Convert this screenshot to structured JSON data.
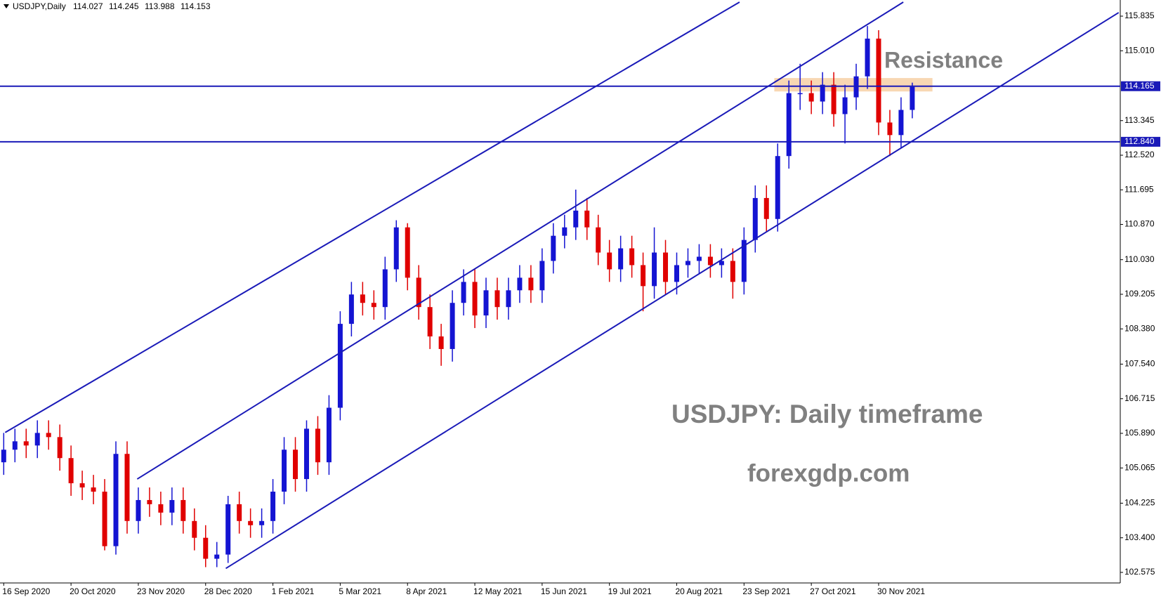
{
  "chart_data": {
    "type": "candlestick",
    "header": {
      "symbol": "USDJPY,Daily",
      "ohlc": [
        114.027,
        114.245,
        113.988,
        114.153
      ]
    },
    "up_color": "#1414d2",
    "down_color": "#e00000",
    "line_color": "#1a1ab8",
    "categories": [
      "16 Sep 2020",
      null,
      null,
      null,
      null,
      null,
      "20 Oct 2020",
      null,
      null,
      null,
      null,
      null,
      "23 Nov 2020",
      null,
      null,
      null,
      null,
      null,
      "28 Dec 2020",
      null,
      null,
      null,
      null,
      null,
      "1 Feb 2021",
      null,
      null,
      null,
      null,
      null,
      "5 Mar 2021",
      null,
      null,
      null,
      null,
      null,
      "8 Apr 2021",
      null,
      null,
      null,
      null,
      null,
      "12 May 2021",
      null,
      null,
      null,
      null,
      null,
      "15 Jun 2021",
      null,
      null,
      null,
      null,
      null,
      "19 Jul 2021",
      null,
      null,
      null,
      null,
      null,
      "20 Aug 2021",
      null,
      null,
      null,
      null,
      null,
      "23 Sep 2021",
      null,
      null,
      null,
      null,
      null,
      "27 Oct 2021",
      null,
      null,
      null,
      null,
      null,
      "30 Nov 2021",
      null,
      null,
      null
    ],
    "open": [
      105.2,
      105.5,
      105.7,
      105.6,
      105.9,
      105.8,
      105.3,
      104.7,
      104.6,
      104.5,
      103.2,
      105.4,
      103.8,
      104.3,
      104.2,
      104.0,
      104.3,
      103.8,
      103.4,
      102.9,
      103.0,
      104.2,
      103.8,
      103.7,
      103.8,
      104.5,
      105.5,
      104.8,
      106.0,
      105.2,
      106.5,
      108.5,
      109.2,
      109.0,
      108.9,
      109.8,
      110.8,
      109.6,
      108.9,
      108.2,
      107.9,
      109.0,
      109.5,
      108.7,
      109.3,
      108.9,
      109.3,
      109.6,
      109.3,
      110.0,
      110.6,
      110.8,
      111.2,
      110.8,
      110.2,
      109.8,
      110.3,
      109.9,
      109.4,
      110.2,
      109.5,
      109.9,
      110.0,
      110.1,
      109.9,
      110.0,
      109.5,
      110.5,
      111.5,
      111.0,
      112.5,
      114.0,
      114.0,
      113.8,
      114.2,
      113.5,
      113.9,
      114.4,
      115.3,
      113.3,
      113.0,
      113.6
    ],
    "high": [
      105.9,
      106.0,
      106.0,
      106.2,
      106.2,
      106.1,
      105.6,
      105.0,
      104.9,
      104.8,
      105.7,
      105.7,
      104.6,
      104.6,
      104.5,
      104.6,
      104.6,
      104.1,
      103.7,
      103.3,
      104.4,
      104.5,
      104.1,
      104.1,
      104.8,
      105.8,
      105.8,
      106.2,
      106.3,
      106.8,
      108.8,
      109.5,
      109.5,
      109.3,
      110.1,
      110.97,
      110.9,
      109.9,
      109.2,
      108.5,
      109.3,
      109.8,
      109.8,
      109.6,
      109.6,
      109.6,
      109.9,
      109.9,
      110.3,
      110.9,
      111.1,
      111.7,
      111.5,
      111.1,
      110.5,
      110.6,
      110.6,
      110.2,
      110.8,
      110.5,
      110.2,
      110.3,
      110.4,
      110.4,
      110.3,
      110.3,
      110.8,
      111.8,
      111.8,
      112.8,
      114.3,
      114.7,
      114.3,
      114.5,
      114.5,
      114.2,
      114.7,
      115.6,
      115.5,
      113.6,
      113.9,
      114.25
    ],
    "low": [
      104.9,
      105.2,
      105.3,
      105.3,
      105.5,
      105.0,
      104.4,
      104.3,
      104.2,
      103.1,
      103.0,
      103.5,
      103.5,
      103.9,
      103.7,
      103.7,
      103.5,
      103.1,
      102.7,
      102.7,
      102.8,
      103.5,
      103.4,
      103.4,
      103.5,
      104.2,
      104.5,
      104.5,
      104.9,
      104.9,
      106.2,
      108.2,
      108.7,
      108.6,
      108.6,
      109.5,
      109.3,
      108.6,
      107.9,
      107.5,
      107.6,
      108.7,
      108.4,
      108.4,
      108.6,
      108.6,
      109.0,
      109.0,
      109.0,
      109.7,
      110.3,
      110.5,
      110.5,
      109.9,
      109.5,
      109.5,
      109.6,
      108.8,
      109.1,
      109.2,
      109.2,
      109.6,
      109.7,
      109.6,
      109.6,
      109.1,
      109.2,
      110.2,
      110.7,
      110.7,
      112.2,
      113.6,
      113.5,
      113.5,
      113.2,
      112.8,
      113.6,
      114.1,
      113.0,
      112.5,
      112.7,
      113.4
    ],
    "close": [
      105.5,
      105.7,
      105.6,
      105.9,
      105.8,
      105.3,
      104.7,
      104.6,
      104.5,
      103.2,
      105.4,
      103.8,
      104.3,
      104.2,
      104.0,
      104.3,
      103.8,
      103.4,
      102.9,
      103.0,
      104.2,
      103.8,
      103.7,
      103.8,
      104.5,
      105.5,
      104.8,
      106.0,
      105.2,
      106.5,
      108.5,
      109.2,
      109.0,
      108.9,
      109.8,
      110.8,
      109.6,
      108.9,
      108.2,
      107.9,
      109.0,
      109.5,
      108.7,
      109.3,
      108.9,
      109.3,
      109.6,
      109.3,
      110.0,
      110.6,
      110.8,
      111.2,
      110.8,
      110.2,
      109.8,
      110.3,
      109.9,
      109.4,
      110.2,
      109.5,
      109.9,
      110.0,
      110.1,
      109.9,
      110.0,
      109.5,
      110.5,
      111.5,
      111.0,
      112.5,
      114.0,
      114.0,
      113.8,
      114.2,
      113.5,
      113.9,
      114.4,
      115.3,
      113.3,
      113.0,
      113.6,
      114.15
    ],
    "ylim": [
      102.34,
      116.17
    ],
    "yticks": [
      115.835,
      {
        "value": 115.01,
        "label": "115.010"
      },
      113.345,
      {
        "value": 112.52,
        "label": "112.520"
      },
      111.695,
      {
        "value": 110.87,
        "label": "110.870"
      },
      {
        "value": 110.03,
        "label": "110.030"
      },
      109.205,
      {
        "value": 108.38,
        "label": "108.380"
      },
      {
        "value": 107.54,
        "label": "107.540"
      },
      106.715,
      {
        "value": 105.89,
        "label": "105.890"
      },
      105.065,
      104.225,
      {
        "value": 103.4,
        "label": "103.400"
      },
      102.575
    ],
    "hlines": [
      114.165,
      {
        "value": 112.84,
        "label": "112.840"
      }
    ],
    "trendlines": [
      {
        "x": [
          0.13,
          65.6
        ],
        "y": [
          105.91,
          116.17
        ]
      },
      {
        "x": [
          11.9,
          80.2
        ],
        "y": [
          104.8,
          116.17
        ]
      },
      {
        "x": [
          19.8,
          99.4
        ],
        "y": [
          102.67,
          115.92
        ]
      }
    ],
    "zone": {
      "x": [
        68.7,
        82.8
      ],
      "y": [
        114.04,
        114.36
      ],
      "color": "#f5c99a"
    },
    "annotations": [
      "Resistance",
      "USDJPY: Daily timeframe",
      "forexgdp.com"
    ]
  }
}
